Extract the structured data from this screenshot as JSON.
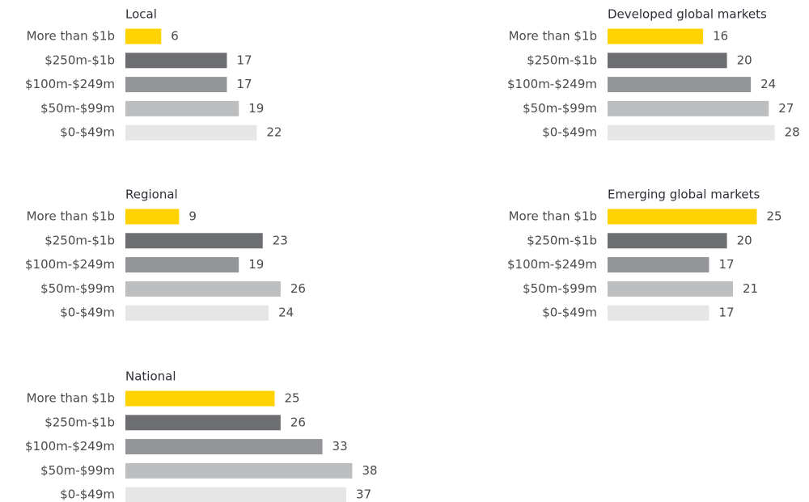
{
  "chart_data": [
    {
      "type": "bar",
      "orientation": "horizontal",
      "title": "Local",
      "categories": [
        "More than $1b",
        "$250m-$1b",
        "$100m-$249m",
        "$50m-$99m",
        "$0-$49m"
      ],
      "values": [
        6,
        17,
        17,
        19,
        22
      ],
      "colors": [
        "#ffd200",
        "#6d6e71",
        "#939598",
        "#bcbec0",
        "#e6e6e6"
      ]
    },
    {
      "type": "bar",
      "orientation": "horizontal",
      "title": "Regional",
      "categories": [
        "More than $1b",
        "$250m-$1b",
        "$100m-$249m",
        "$50m-$99m",
        "$0-$49m"
      ],
      "values": [
        9,
        23,
        19,
        26,
        24
      ],
      "colors": [
        "#ffd200",
        "#6d6e71",
        "#939598",
        "#bcbec0",
        "#e6e6e6"
      ]
    },
    {
      "type": "bar",
      "orientation": "horizontal",
      "title": "National",
      "categories": [
        "More than $1b",
        "$250m-$1b",
        "$100m-$249m",
        "$50m-$99m",
        "$0-$49m"
      ],
      "values": [
        25,
        26,
        33,
        38,
        37
      ],
      "colors": [
        "#ffd200",
        "#6d6e71",
        "#939598",
        "#bcbec0",
        "#e6e6e6"
      ]
    },
    {
      "type": "bar",
      "orientation": "horizontal",
      "title": "Developed global markets",
      "categories": [
        "More than $1b",
        "$250m-$1b",
        "$100m-$249m",
        "$50m-$99m",
        "$0-$49m"
      ],
      "values": [
        16,
        20,
        24,
        27,
        28
      ],
      "colors": [
        "#ffd200",
        "#6d6e71",
        "#939598",
        "#bcbec0",
        "#e6e6e6"
      ]
    },
    {
      "type": "bar",
      "orientation": "horizontal",
      "title": "Emerging global markets",
      "categories": [
        "More than $1b",
        "$250m-$1b",
        "$100m-$249m",
        "$50m-$99m",
        "$0-$49m"
      ],
      "values": [
        25,
        20,
        17,
        21,
        17
      ],
      "colors": [
        "#ffd200",
        "#6d6e71",
        "#939598",
        "#bcbec0",
        "#e6e6e6"
      ]
    }
  ]
}
